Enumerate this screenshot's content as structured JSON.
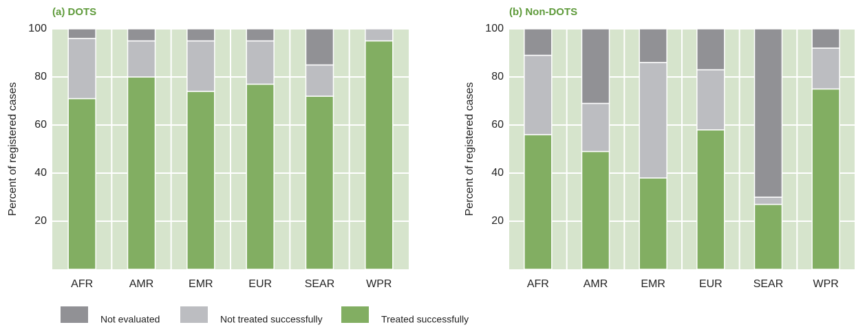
{
  "chart_data": [
    {
      "type": "bar",
      "stacked": true,
      "title": "(a) DOTS",
      "ylabel": "Percent of registered cases",
      "categories": [
        "AFR",
        "AMR",
        "EMR",
        "EUR",
        "SEAR",
        "WPR"
      ],
      "series": [
        {
          "name": "Not evaluated",
          "color": "#919195",
          "values": [
            4,
            5,
            5,
            5,
            15,
            0
          ]
        },
        {
          "name": "Not treated successfully",
          "color": "#bcbdc1",
          "values": [
            25,
            15,
            21,
            18,
            13,
            5
          ]
        },
        {
          "name": "Treated successfully",
          "color": "#82ae62",
          "values": [
            71,
            80,
            74,
            77,
            72,
            95
          ]
        }
      ],
      "ylim": [
        0,
        100
      ],
      "yticks": [
        20,
        40,
        60,
        80,
        100
      ],
      "grid": true
    },
    {
      "type": "bar",
      "stacked": true,
      "title": "(b) Non-DOTS",
      "ylabel": "Percent of registered cases",
      "categories": [
        "AFR",
        "AMR",
        "EMR",
        "EUR",
        "SEAR",
        "WPR"
      ],
      "series": [
        {
          "name": "Not evaluated",
          "color": "#919195",
          "values": [
            11,
            31,
            14,
            17,
            70,
            8
          ]
        },
        {
          "name": "Not treated successfully",
          "color": "#bcbdc1",
          "values": [
            33,
            20,
            48,
            25,
            3,
            17
          ]
        },
        {
          "name": "Treated successfully",
          "color": "#82ae62",
          "values": [
            56,
            49,
            38,
            58,
            27,
            75
          ]
        }
      ],
      "ylim": [
        0,
        100
      ],
      "yticks": [
        20,
        40,
        60,
        80,
        100
      ],
      "grid": true
    }
  ]
}
